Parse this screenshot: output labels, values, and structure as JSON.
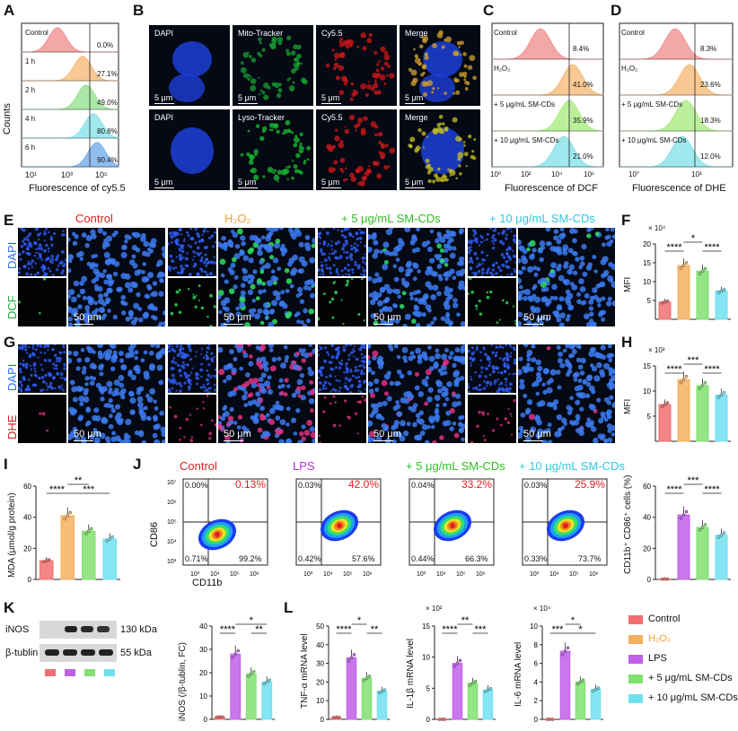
{
  "panels": {
    "A": {
      "letter": "A",
      "rows": [
        {
          "label": "Control",
          "pct": "0.0%",
          "color": "#f08a8a"
        },
        {
          "label": "1 h",
          "pct": "27.1%",
          "color": "#f5b672"
        },
        {
          "label": "2 h",
          "pct": "49.0%",
          "color": "#8fe08a"
        },
        {
          "label": "4 h",
          "pct": "80.8%",
          "color": "#7fe0e8"
        },
        {
          "label": "6 h",
          "pct": "90.4%",
          "color": "#6aa8e8"
        }
      ],
      "ylabel": "Counts",
      "xlabel": "Fluorescence of cy5.5",
      "ticks": [
        "10¹",
        "10³",
        "10⁵"
      ]
    },
    "B": {
      "letter": "B",
      "row1": [
        "DAPI",
        "Mito-Tracker",
        "Cy5.5",
        "Merge"
      ],
      "row2": [
        "DAPI",
        "Lyso-Tracker",
        "Cy5.5",
        "Merge"
      ],
      "scale": "5 μm"
    },
    "C": {
      "letter": "C",
      "rows": [
        {
          "label": "Control",
          "pct": "8.4%",
          "color": "#f08a8a"
        },
        {
          "label": "H₂O₂",
          "pct": "41.0%",
          "color": "#f5b672"
        },
        {
          "label": "+ 5 μg/mL SM-CDs",
          "pct": "35.9%",
          "color": "#a6ea7a"
        },
        {
          "label": "+ 10 μg/mL SM-CDs",
          "pct": "21.0%",
          "color": "#7fe0e8"
        }
      ],
      "xlabel": "Fluorescence of DCF",
      "ticks": [
        "10⁰",
        "10²",
        "10⁴",
        "10⁶"
      ]
    },
    "D": {
      "letter": "D",
      "rows": [
        {
          "label": "Control",
          "pct": "8.3%",
          "color": "#f08a8a"
        },
        {
          "label": "H₂O₂",
          "pct": "23.6%",
          "color": "#f5b672"
        },
        {
          "label": "+ 5 μg/mL SM-CDs",
          "pct": "18.3%",
          "color": "#a6ea7a"
        },
        {
          "label": "+ 10 μg/mL SM-CDs",
          "pct": "12.0%",
          "color": "#7fe0e8"
        }
      ],
      "xlabel": "Fluorescence of DHE",
      "ticks": [
        "10°",
        "10³"
      ]
    },
    "E": {
      "letter": "E",
      "conditions": [
        "Control",
        "H₂O₂",
        "+ 5 μg/mL SM-CDs",
        "+ 10 μg/mL SM-CDs"
      ],
      "condColors": [
        "#e02020",
        "#f5a030",
        "#30c020",
        "#30c8e0"
      ],
      "stains": [
        "DAPI",
        "DCF"
      ],
      "scale": "50 μm"
    },
    "F": {
      "letter": "F",
      "ylabel": "MFI",
      "exponent": "× 10⁴",
      "sig": [
        "*",
        "****",
        "****"
      ]
    },
    "G": {
      "letter": "G",
      "stains": [
        "DAPI",
        "DHE"
      ],
      "scale": "50 μm"
    },
    "H": {
      "letter": "H",
      "ylabel": "MFI",
      "exponent": "× 10³",
      "sig": [
        "***",
        "****",
        "****"
      ]
    },
    "I": {
      "letter": "I",
      "ylabel": "MDA (μmol/g protein)",
      "sig": [
        "**",
        "****",
        "***"
      ]
    },
    "J": {
      "letter": "J",
      "conditions": [
        "Control",
        "LPS",
        "+ 5 μg/mL SM-CDs",
        "+ 10 μg/mL SM-CDs"
      ],
      "condColors": [
        "#e02020",
        "#b030e0",
        "#30c020",
        "#30c8e0"
      ],
      "quads": [
        {
          "ul": "0.00%",
          "ur": "0.13%",
          "ll": "0.71%",
          "lr": "99.2%"
        },
        {
          "ul": "0.03%",
          "ur": "42.0%",
          "ll": "0.42%",
          "lr": "57.6%"
        },
        {
          "ul": "0.04%",
          "ur": "33.2%",
          "ll": "0.44%",
          "lr": "66.3%"
        },
        {
          "ul": "0.03%",
          "ur": "25.9%",
          "ll": "0.33%",
          "lr": "73.7%"
        }
      ],
      "yaxis": "CD86",
      "xaxis": "CD11b",
      "yticks": [
        "10⁷",
        "10⁶",
        "10⁵",
        "10⁴",
        "10³"
      ],
      "xticks": [
        "10³",
        "10⁴",
        "10⁵",
        "10⁶"
      ],
      "bar_ylabel": "CD11b⁺ CD86⁺ cells (%)",
      "sig": [
        "***",
        "****",
        "****"
      ]
    },
    "K": {
      "letter": "K",
      "bands": [
        {
          "name": "iNOS",
          "kda": "130 kDa"
        },
        {
          "name": "β-tublin",
          "kda": "55 kDa"
        }
      ],
      "ylabel": "iNOS (/β-tublin, FC)",
      "sig": [
        "*",
        "****",
        "**"
      ]
    },
    "L": {
      "letter": "L",
      "plots": [
        {
          "ylabel": "TNF-α mRNA level",
          "exponent": "",
          "sig": [
            "*",
            "****",
            "**"
          ]
        },
        {
          "ylabel": "IL-1β mRNA level",
          "exponent": "× 10²",
          "sig": [
            "**",
            "****",
            "***"
          ]
        },
        {
          "ylabel": "IL-6 mRNA level",
          "exponent": "× 10⁴",
          "sig": [
            "*",
            "***",
            "*"
          ]
        }
      ]
    },
    "legend": [
      {
        "label": "Control",
        "color": "#f07070"
      },
      {
        "label": "H₂O₂",
        "color": "#f5b060"
      },
      {
        "label": "LPS",
        "color": "#c060e8"
      },
      {
        "label": "+ 5 μg/mL SM-CDs",
        "color": "#80e070"
      },
      {
        "label": "+ 10 μg/mL SM-CDs",
        "color": "#70e0f0"
      }
    ]
  },
  "chart_data": [
    {
      "id": "F",
      "type": "bar",
      "title": "",
      "ylabel": "MFI (×10⁴)",
      "categories": [
        "Control",
        "H₂O₂",
        "+ 5 μg/mL SM-CDs",
        "+ 10 μg/mL SM-CDs"
      ],
      "values": [
        4.6,
        14.3,
        12.8,
        7.5
      ],
      "ylim": [
        0,
        20
      ],
      "yticks": [
        5,
        10,
        15,
        20
      ],
      "colors": [
        "#f07070",
        "#f5b060",
        "#80e070",
        "#70e0f0"
      ]
    },
    {
      "id": "H",
      "type": "bar",
      "ylabel": "MFI (×10³)",
      "categories": [
        "Control",
        "H₂O₂",
        "+ 5 μg/mL SM-CDs",
        "+ 10 μg/mL SM-CDs"
      ],
      "values": [
        7.3,
        12.3,
        11.1,
        9.2
      ],
      "ylim": [
        0,
        15
      ],
      "yticks": [
        5,
        10,
        15
      ],
      "colors": [
        "#f07070",
        "#f5b060",
        "#80e070",
        "#70e0f0"
      ]
    },
    {
      "id": "I",
      "type": "bar",
      "ylabel": "MDA (μmol/g protein)",
      "categories": [
        "Control",
        "H₂O₂",
        "+ 5 μg/mL SM-CDs",
        "+ 10 μg/mL SM-CDs"
      ],
      "values": [
        12,
        41,
        31,
        26
      ],
      "ylim": [
        0,
        60
      ],
      "yticks": [
        0,
        20,
        40,
        60
      ],
      "colors": [
        "#f07070",
        "#f5b060",
        "#80e070",
        "#70e0f0"
      ]
    },
    {
      "id": "J",
      "type": "bar",
      "ylabel": "CD11b⁺ CD86⁺ cells (%)",
      "categories": [
        "Control",
        "LPS",
        "+ 5 μg/mL SM-CDs",
        "+ 10 μg/mL SM-CDs"
      ],
      "values": [
        0.2,
        41.5,
        33.5,
        28.5
      ],
      "ylim": [
        0,
        60
      ],
      "yticks": [
        0,
        20,
        40,
        60
      ],
      "colors": [
        "#f07070",
        "#c060e8",
        "#80e070",
        "#70e0f0"
      ]
    },
    {
      "id": "K",
      "type": "bar",
      "ylabel": "iNOS (/β-tublin, FC)",
      "categories": [
        "Control",
        "LPS",
        "+ 5 μg/mL SM-CDs",
        "+ 10 μg/mL SM-CDs"
      ],
      "values": [
        1,
        28,
        19.5,
        16
      ],
      "ylim": [
        0,
        40
      ],
      "yticks": [
        0,
        10,
        20,
        30,
        40
      ],
      "colors": [
        "#f07070",
        "#c060e8",
        "#80e070",
        "#70e0f0"
      ]
    },
    {
      "id": "L1",
      "type": "bar",
      "ylabel": "TNF-α mRNA level",
      "categories": [
        "Control",
        "LPS",
        "+ 5 μg/mL SM-CDs",
        "+ 10 μg/mL SM-CDs"
      ],
      "values": [
        1,
        33,
        22,
        15
      ],
      "ylim": [
        0,
        50
      ],
      "yticks": [
        0,
        10,
        20,
        30,
        40,
        50
      ],
      "colors": [
        "#f07070",
        "#c060e8",
        "#80e070",
        "#70e0f0"
      ]
    },
    {
      "id": "L2",
      "type": "bar",
      "ylabel": "IL-1β mRNA level (×10²)",
      "categories": [
        "Control",
        "LPS",
        "+ 5 μg/mL SM-CDs",
        "+ 10 μg/mL SM-CDs"
      ],
      "values": [
        0,
        9,
        5.8,
        4.7
      ],
      "ylim": [
        0,
        15
      ],
      "yticks": [
        0,
        5,
        10,
        15
      ],
      "colors": [
        "#f07070",
        "#c060e8",
        "#80e070",
        "#70e0f0"
      ]
    },
    {
      "id": "L3",
      "type": "bar",
      "ylabel": "IL-6 mRNA level (×10⁴)",
      "categories": [
        "Control",
        "LPS",
        "+ 5 μg/mL SM-CDs",
        "+ 10 μg/mL SM-CDs"
      ],
      "values": [
        0,
        7.3,
        4,
        3.2
      ],
      "ylim": [
        0,
        10
      ],
      "yticks": [
        0,
        2,
        4,
        6,
        8,
        10
      ],
      "colors": [
        "#f07070",
        "#c060e8",
        "#80e070",
        "#70e0f0"
      ]
    }
  ]
}
